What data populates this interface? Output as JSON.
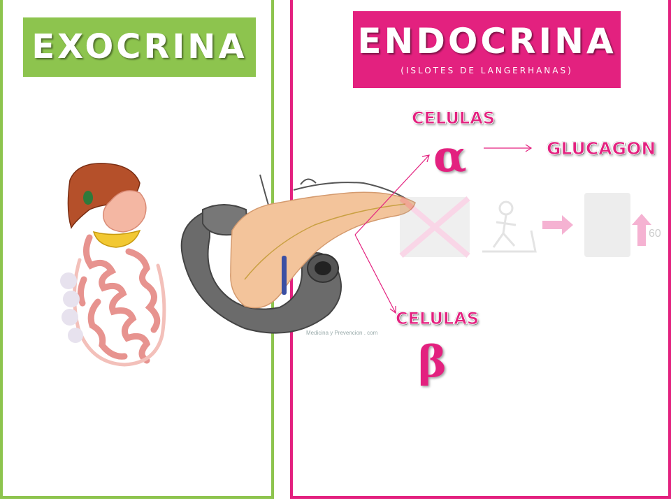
{
  "left_panel": {
    "title": "EXOCRINA"
  },
  "right_panel": {
    "title": "ENDOCRINA",
    "subtitle": "(ISLOTES DE LANGERHANAS)",
    "alpha_label": "CELULAS",
    "alpha_symbol": "α",
    "alpha_product": "GLUCAGON",
    "beta_label": "CELULAS",
    "beta_symbol": "β",
    "watermark": "Medicina y Prevencion . com",
    "faint_number": "60"
  },
  "colors": {
    "green_accent": "#8dc44e",
    "pink_accent": "#e3217f",
    "pancreas": "#f3c49b",
    "gray_organs": "#6b6b6b"
  },
  "icons": [
    "liver-icon",
    "stomach-icon",
    "gallbladder-icon",
    "intestines-icon",
    "pancreas-icon",
    "duodenum-icon"
  ]
}
